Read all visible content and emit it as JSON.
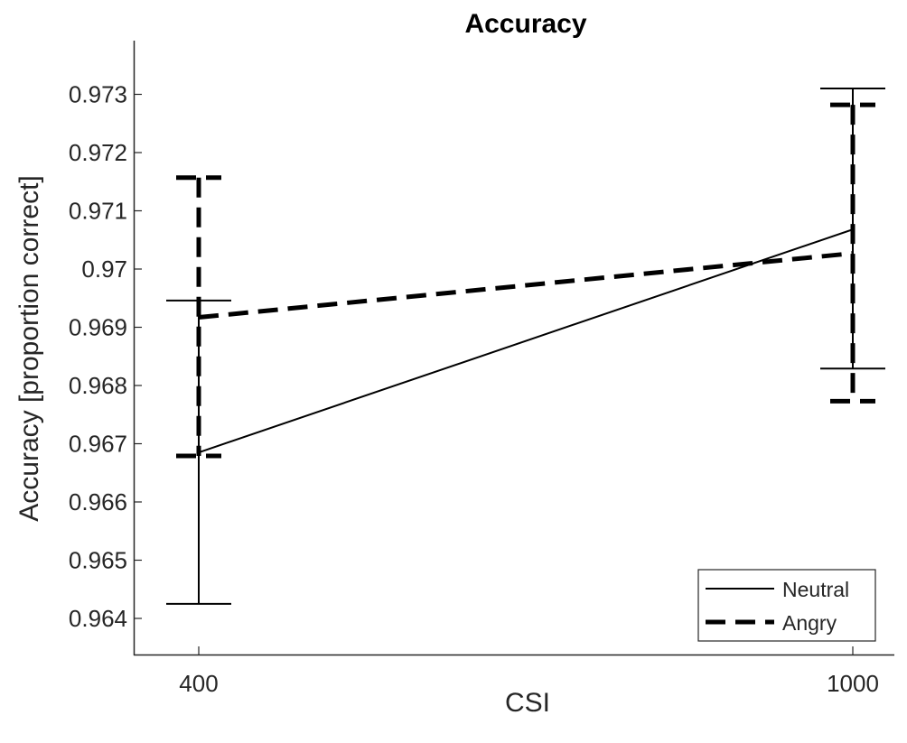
{
  "chart_data": {
    "type": "line",
    "title": "Accuracy",
    "xlabel": "CSI",
    "ylabel": "Accuracy [proportion correct]",
    "x": [
      400,
      1000
    ],
    "xticks": [
      "400",
      "1000"
    ],
    "ylim": [
      0.9634,
      0.974
    ],
    "yticks": [
      "0.964",
      "0.965",
      "0.966",
      "0.967",
      "0.968",
      "0.969",
      "0.97",
      "0.971",
      "0.972",
      "0.973"
    ],
    "grid": false,
    "legend_position": "bottom-right",
    "series": [
      {
        "name": "Neutral",
        "style": "solid",
        "color": "#000000",
        "values": [
          0.96685,
          0.97068
        ],
        "error_low": [
          0.96425,
          0.96829
        ],
        "error_high": [
          0.96946,
          0.9731
        ]
      },
      {
        "name": "Angry",
        "style": "dashed",
        "color": "#000000",
        "values": [
          0.96917,
          0.97027
        ],
        "error_low": [
          0.96679,
          0.96773
        ],
        "error_high": [
          0.97157,
          0.97282
        ]
      }
    ]
  }
}
